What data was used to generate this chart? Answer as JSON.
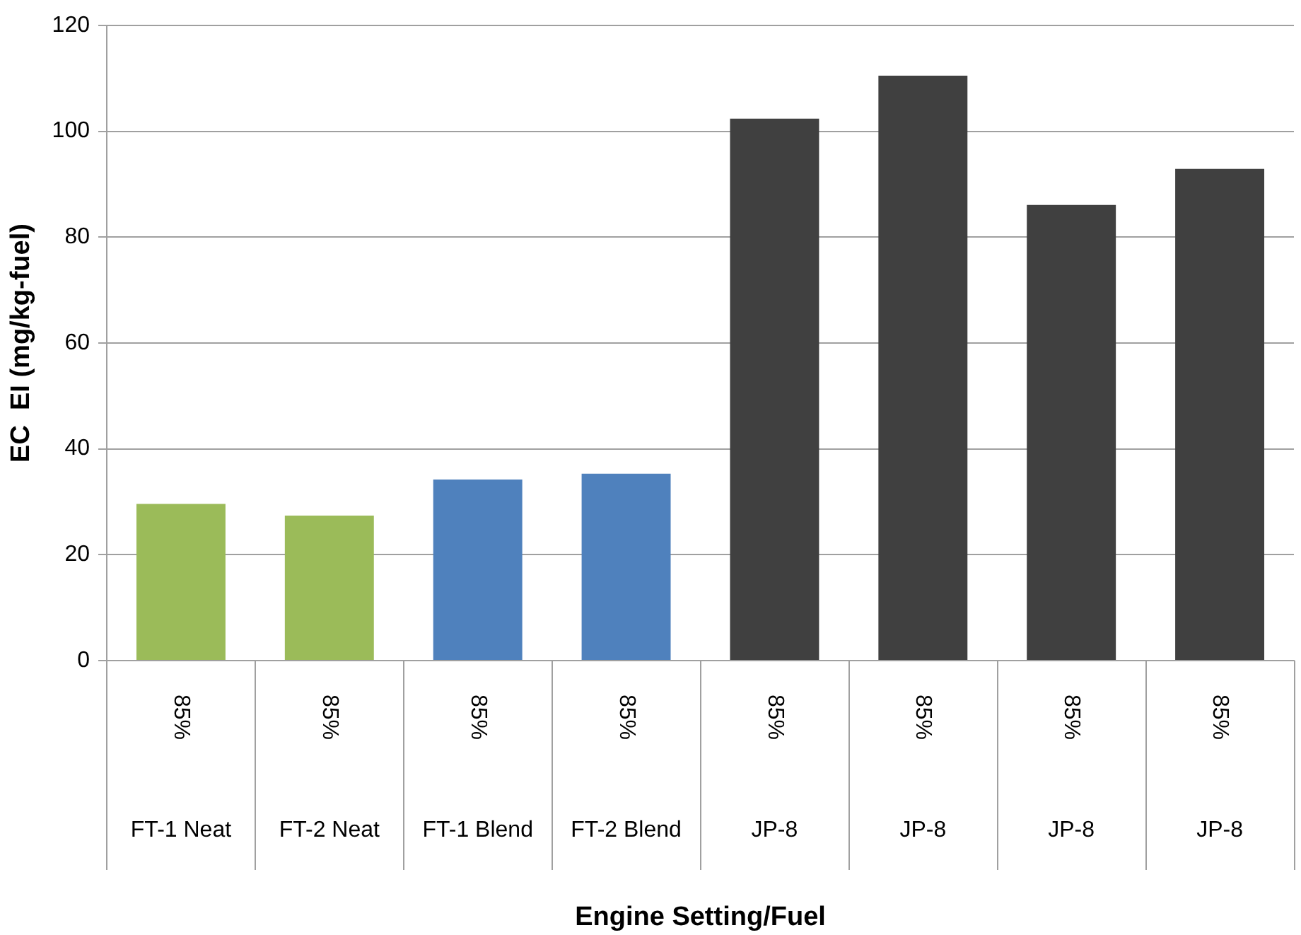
{
  "chart_data": {
    "type": "bar",
    "xlabel": "Engine Setting/Fuel",
    "ylabel": "EC  EI (mg/kg-fuel)",
    "categories": [
      "FT-1 Neat",
      "FT-2 Neat",
      "FT-1 Blend",
      "FT-2 Blend",
      "JP-8",
      "JP-8",
      "JP-8",
      "JP-8"
    ],
    "values": [
      29.6,
      27.4,
      34.2,
      35.3,
      102.4,
      110.5,
      86.1,
      92.9
    ],
    "colors": [
      "#9bbb59",
      "#9bbb59",
      "#4f81bd",
      "#4f81bd",
      "#404040",
      "#404040",
      "#404040",
      "#404040"
    ],
    "annotations": [
      "85%",
      "85%",
      "85%",
      "85%",
      "85%",
      "85%",
      "85%",
      "85%"
    ],
    "ylim": [
      0,
      120
    ],
    "yticks": [
      0,
      20,
      40,
      60,
      80,
      100,
      120
    ],
    "grid": "y",
    "legend": false
  }
}
